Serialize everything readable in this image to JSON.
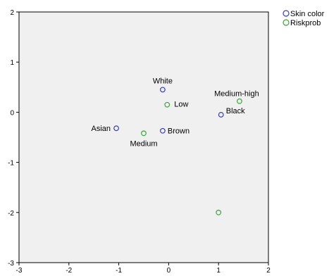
{
  "chart_data": {
    "type": "scatter",
    "xlim": [
      -3,
      2
    ],
    "ylim": [
      -3,
      2
    ],
    "x_ticks": [
      "-3",
      "-2",
      "-1",
      "0",
      "1",
      "2"
    ],
    "y_ticks": [
      "-3",
      "-2",
      "-1",
      "0",
      "1",
      "2"
    ],
    "grid": false,
    "legend_position": "top-right",
    "background_color": "#f0f0f0",
    "series": [
      {
        "name": "Skin color",
        "color": "#3a3fb0",
        "points": [
          {
            "label": "White",
            "x": -0.12,
            "y": 0.45
          },
          {
            "label": "Black",
            "x": 1.05,
            "y": -0.05
          },
          {
            "label": "Asian",
            "x": -1.05,
            "y": -0.32
          },
          {
            "label": "Brown",
            "x": -0.12,
            "y": -0.37
          }
        ]
      },
      {
        "name": "Riskprob",
        "color": "#3aa33a",
        "points": [
          {
            "label": "Low",
            "x": -0.03,
            "y": 0.15
          },
          {
            "label": "Medium-high",
            "x": 1.42,
            "y": 0.22
          },
          {
            "label": "Medium",
            "x": -0.5,
            "y": -0.42
          },
          {
            "label": "",
            "x": 1.0,
            "y": -2.0
          }
        ]
      }
    ]
  }
}
